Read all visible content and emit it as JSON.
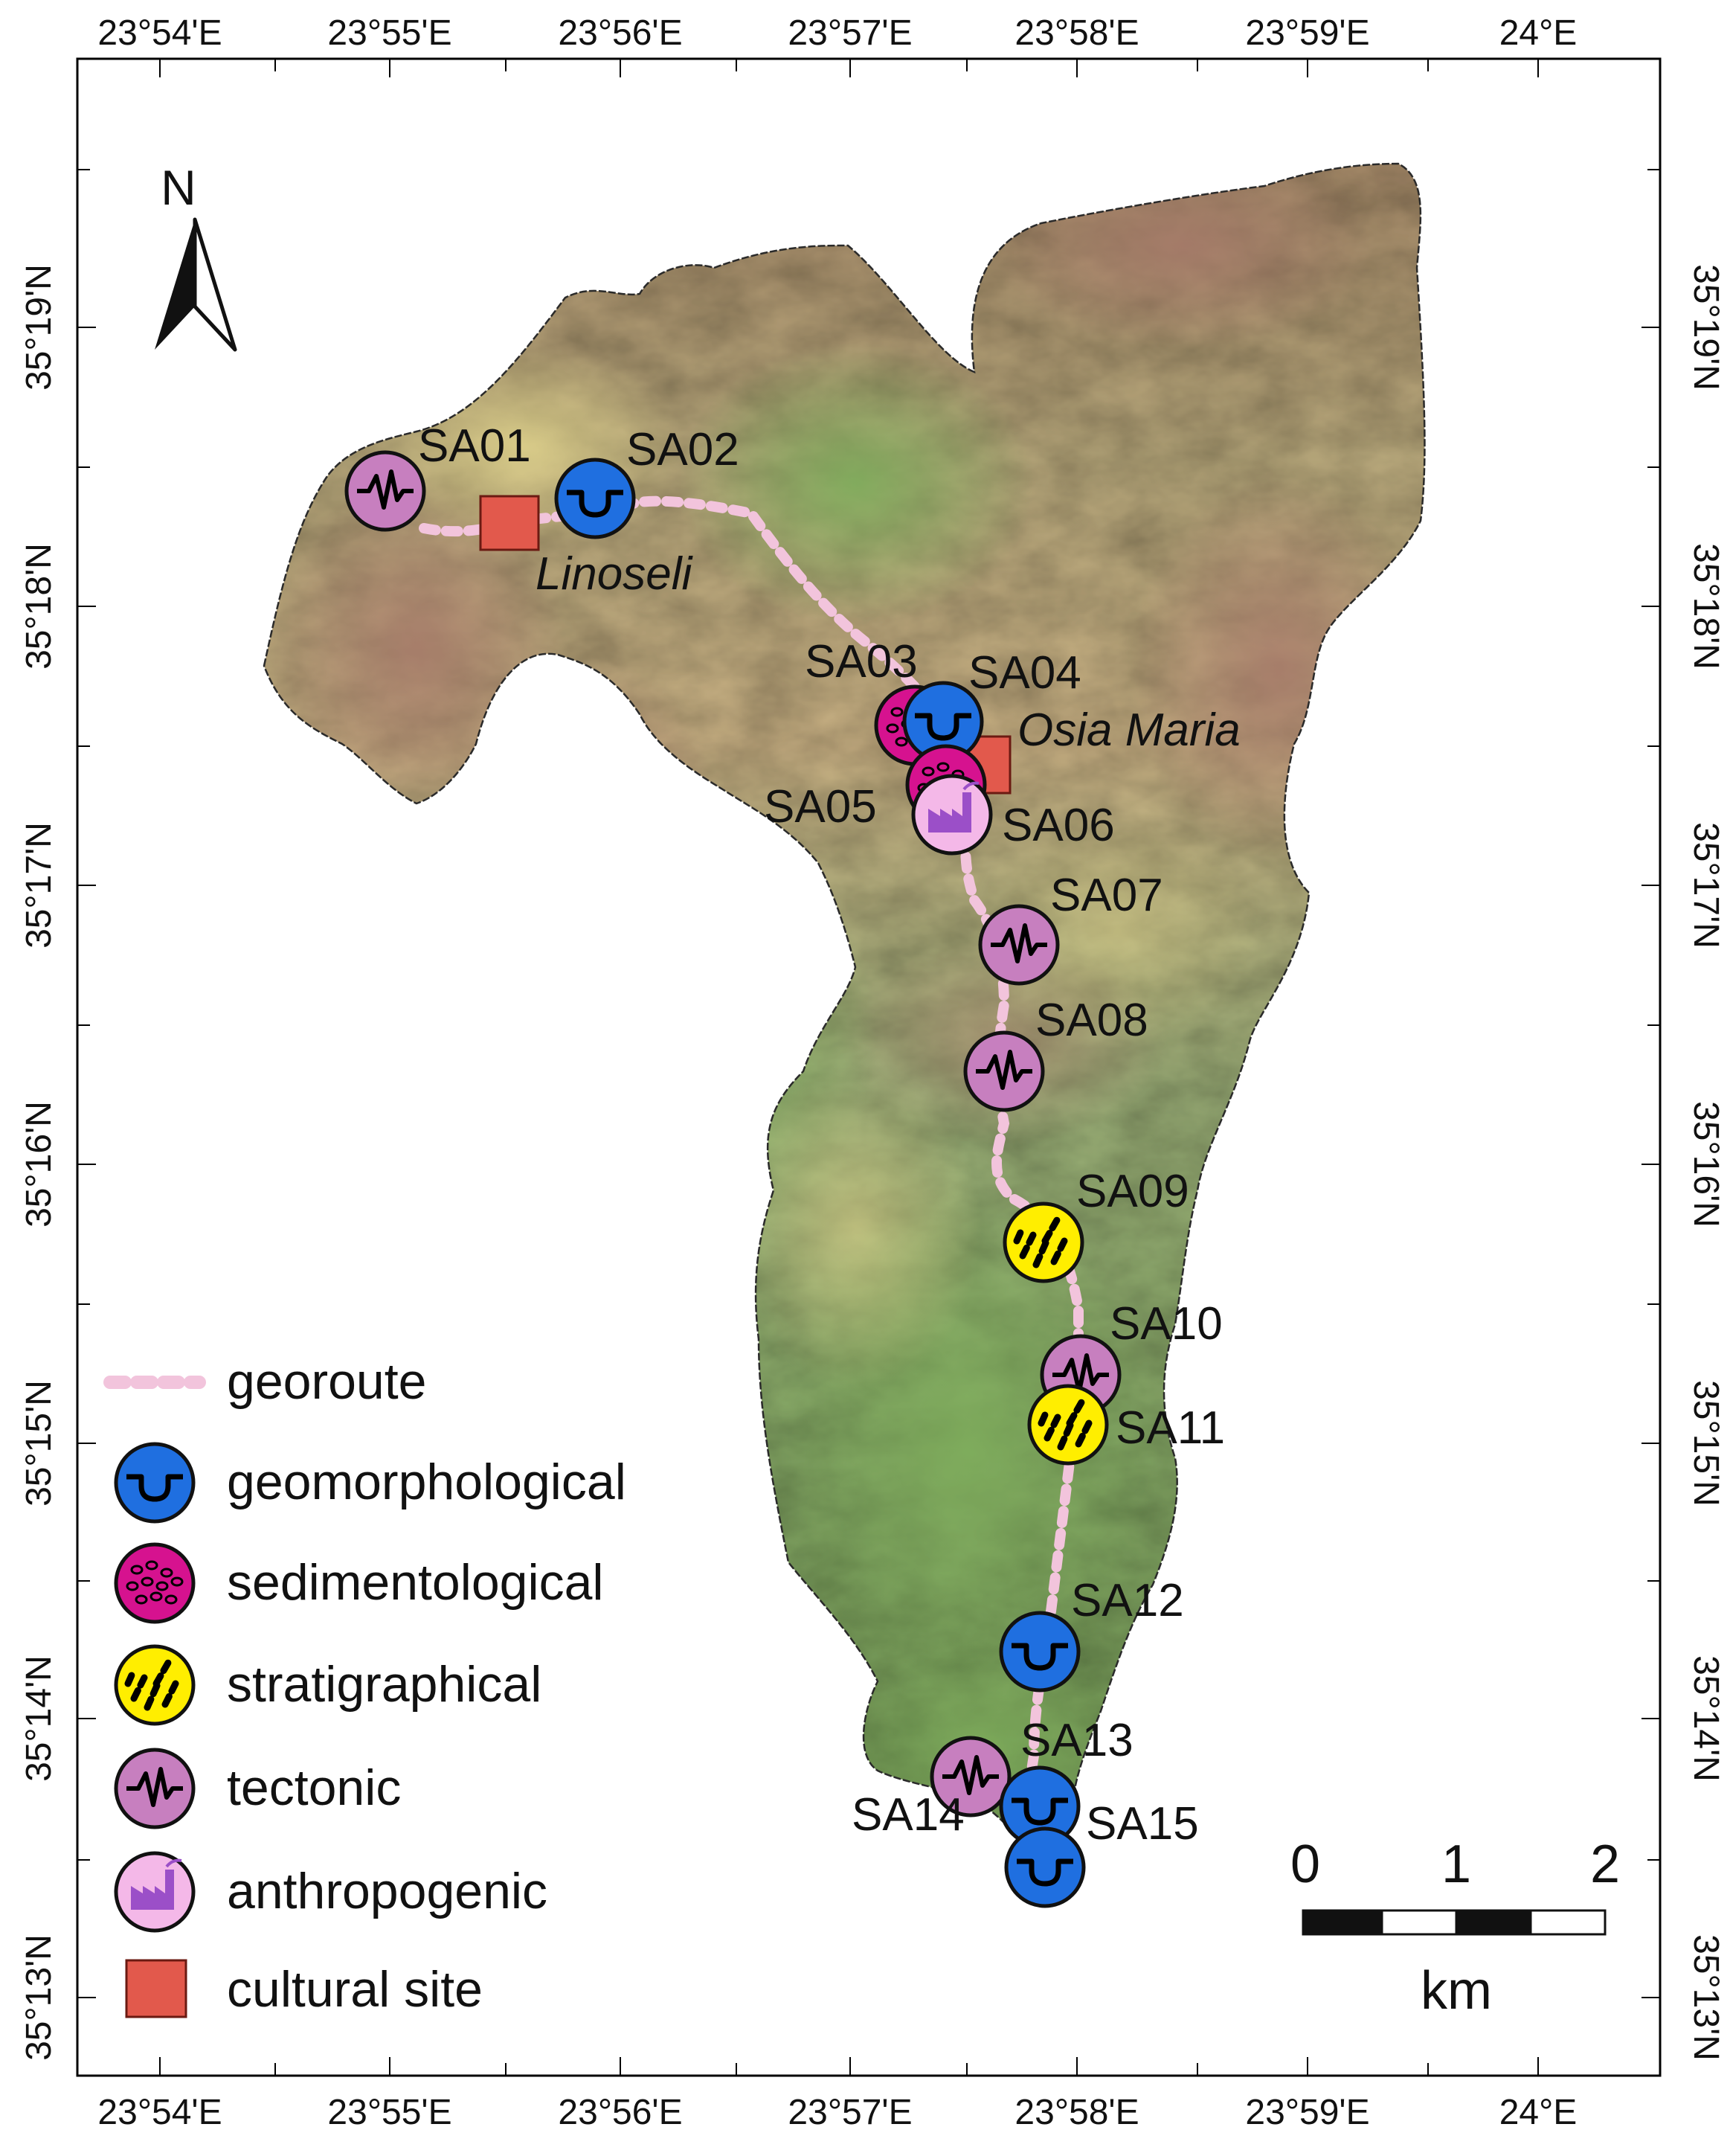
{
  "north_arrow": {
    "label": "N"
  },
  "axes": {
    "top_labels": [
      "23°54'E",
      "23°55'E",
      "23°56'E",
      "23°57'E",
      "23°58'E",
      "23°59'E",
      "24°E"
    ],
    "bottom_labels": [
      "23°54'E",
      "23°55'E",
      "23°56'E",
      "23°57'E",
      "23°58'E",
      "23°59'E",
      "24°E"
    ],
    "left_labels": [
      "35°19'N",
      "35°18'N",
      "35°17'N",
      "35°16'N",
      "35°15'N",
      "35°14'N",
      "35°13'N"
    ],
    "right_labels": [
      "35°19'N",
      "35°18'N",
      "35°17'N",
      "35°16'N",
      "35°15'N",
      "35°14'N",
      "35°13'N"
    ]
  },
  "places": [
    {
      "name": "Linoseli"
    },
    {
      "name": "Osia Maria"
    }
  ],
  "sites": [
    {
      "id": "SA01",
      "type": "tectonic"
    },
    {
      "id": "SA02",
      "type": "geomorphological"
    },
    {
      "id": "SA03",
      "type": "sedimentological"
    },
    {
      "id": "SA04",
      "type": "geomorphological"
    },
    {
      "id": "SA05",
      "type": "sedimentological"
    },
    {
      "id": "SA06",
      "type": "anthropogenic"
    },
    {
      "id": "SA07",
      "type": "tectonic"
    },
    {
      "id": "SA08",
      "type": "tectonic"
    },
    {
      "id": "SA09",
      "type": "stratigraphical"
    },
    {
      "id": "SA10",
      "type": "tectonic"
    },
    {
      "id": "SA11",
      "type": "stratigraphical"
    },
    {
      "id": "SA12",
      "type": "geomorphological"
    },
    {
      "id": "SA13",
      "type": "tectonic"
    },
    {
      "id": "SA14",
      "type": "geomorphological"
    },
    {
      "id": "SA15",
      "type": "geomorphological"
    }
  ],
  "legend": {
    "items": [
      {
        "key": "georoute",
        "label": "georoute"
      },
      {
        "key": "geomorphological",
        "label": "geomorphological"
      },
      {
        "key": "sedimentological",
        "label": "sedimentological"
      },
      {
        "key": "stratigraphical",
        "label": "stratigraphical"
      },
      {
        "key": "tectonic",
        "label": "tectonic"
      },
      {
        "key": "anthropogenic",
        "label": "anthropogenic"
      },
      {
        "key": "cultural",
        "label": "cultural site"
      }
    ]
  },
  "scale_bar": {
    "ticks": [
      "0",
      "1",
      "2"
    ],
    "unit": "km"
  },
  "colors": {
    "geomorphological": "#1f6fe0",
    "sedimentological": "#d6128f",
    "stratigraphical": "#ffee00",
    "tectonic": "#c77fbf",
    "anthropogenic": "#f4b8e8",
    "cultural": "#e2594c",
    "georoute": "#f2c4dc"
  }
}
